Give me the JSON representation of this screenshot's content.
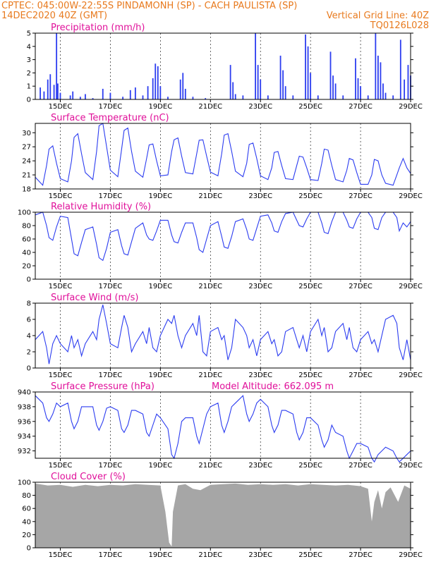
{
  "header": {
    "line1_left": "CPTEC:   045:00W-22:55S   PINDAMONH (SP) - CACH PAULISTA (SP)",
    "line2_left": "14DEC2020 40Z (GMT)",
    "line2_right": "Vertical Grid Line: 40Z",
    "line3_right": "TQ0126L028"
  },
  "colors": {
    "header": "#e87a1e",
    "title": "#e0109a",
    "series": "#2c3df0",
    "cloud": "#a6a6a6",
    "frame": "#000000"
  },
  "x_axis": {
    "range_days": [
      14,
      29
    ],
    "tick_days": [
      15,
      17,
      19,
      21,
      23,
      25,
      27,
      29
    ],
    "tick_labels": [
      "15DEC",
      "17DEC",
      "19DEC",
      "21DEC",
      "23DEC",
      "25DEC",
      "27DEC",
      "29DEC"
    ]
  },
  "chart_data": [
    {
      "type": "bar",
      "title": "Precipitation (mm/h)",
      "ylim": [
        0,
        5
      ],
      "yticks": [
        0,
        1,
        2,
        3,
        4,
        5
      ],
      "grid": "vertical dashed at 40Z",
      "x_days": [
        14.2,
        14.35,
        14.5,
        14.6,
        14.75,
        14.85,
        14.9,
        15.0,
        15.4,
        15.5,
        15.8,
        16.0,
        16.3,
        16.7,
        17.0,
        17.5,
        17.8,
        18.0,
        18.3,
        18.5,
        18.7,
        18.8,
        18.9,
        19.0,
        19.3,
        19.8,
        19.9,
        20.0,
        20.3,
        20.8,
        21.8,
        21.9,
        22.0,
        22.3,
        22.8,
        22.9,
        23.0,
        23.3,
        23.8,
        23.9,
        24.0,
        24.3,
        24.8,
        24.9,
        25.0,
        25.3,
        25.8,
        25.9,
        26.0,
        26.3,
        26.8,
        26.9,
        27.0,
        27.3,
        27.6,
        27.7,
        27.8,
        27.9,
        28.0,
        28.3,
        28.6,
        28.75,
        28.9,
        29.0
      ],
      "values": [
        0.9,
        0.6,
        1.5,
        1.9,
        1.1,
        5.0,
        1.2,
        0.5,
        0.3,
        0.6,
        0.2,
        0.4,
        0.1,
        0.8,
        0.5,
        0.2,
        0.7,
        0.9,
        0.3,
        1.0,
        1.6,
        2.7,
        2.5,
        1.0,
        0.2,
        1.5,
        2.0,
        0.8,
        0.2,
        0.1,
        2.6,
        1.3,
        0.4,
        0.3,
        5.0,
        2.6,
        1.5,
        0.3,
        3.3,
        2.2,
        1.0,
        0.3,
        4.9,
        4.0,
        2.0,
        0.3,
        3.6,
        1.8,
        1.2,
        0.3,
        3.1,
        1.6,
        1.0,
        0.3,
        5.0,
        3.3,
        2.8,
        1.2,
        0.5,
        0.3,
        4.5,
        1.5,
        2.6,
        1.8
      ]
    },
    {
      "type": "line",
      "title": "Surface Temperature (nC)",
      "ylim": [
        18,
        32
      ],
      "yticks": [
        18,
        21,
        24,
        27,
        30
      ],
      "x_days": [
        14.0,
        14.3,
        14.45,
        14.55,
        14.7,
        14.85,
        15.0,
        15.3,
        15.45,
        15.55,
        15.7,
        15.85,
        16.0,
        16.3,
        16.45,
        16.55,
        16.7,
        16.85,
        17.0,
        17.3,
        17.45,
        17.55,
        17.7,
        17.85,
        18.0,
        18.3,
        18.45,
        18.55,
        18.7,
        18.85,
        19.0,
        19.3,
        19.45,
        19.55,
        19.7,
        19.85,
        20.0,
        20.3,
        20.45,
        20.55,
        20.7,
        20.85,
        21.0,
        21.3,
        21.45,
        21.55,
        21.7,
        21.85,
        22.0,
        22.3,
        22.45,
        22.55,
        22.7,
        22.85,
        23.0,
        23.3,
        23.45,
        23.55,
        23.7,
        23.85,
        24.0,
        24.3,
        24.45,
        24.55,
        24.7,
        24.85,
        25.0,
        25.3,
        25.45,
        25.55,
        25.7,
        25.85,
        26.0,
        26.3,
        26.45,
        26.55,
        26.7,
        26.85,
        27.0,
        27.3,
        27.45,
        27.55,
        27.7,
        27.85,
        28.0,
        28.3,
        28.45,
        28.55,
        28.7,
        28.85,
        29.0
      ],
      "values": [
        20.5,
        18.8,
        23.0,
        26.5,
        27.2,
        23.5,
        20.2,
        19.5,
        24.0,
        29.0,
        29.8,
        25.5,
        21.5,
        20.0,
        26.0,
        31.5,
        32.0,
        27.0,
        22.0,
        20.6,
        26.5,
        30.5,
        31.0,
        26.0,
        21.8,
        20.5,
        24.5,
        27.4,
        27.6,
        24.0,
        20.8,
        21.0,
        26.0,
        28.5,
        28.9,
        25.0,
        21.5,
        21.2,
        25.5,
        28.4,
        28.5,
        25.0,
        21.6,
        20.8,
        25.5,
        29.5,
        29.8,
        26.0,
        21.8,
        20.6,
        23.5,
        27.5,
        27.8,
        24.5,
        20.8,
        20.0,
        22.5,
        25.8,
        26.0,
        23.0,
        20.2,
        20.0,
        23.0,
        25.0,
        24.8,
        22.5,
        20.0,
        19.8,
        23.5,
        26.5,
        26.3,
        23.0,
        20.0,
        19.5,
        22.0,
        24.5,
        24.2,
        21.5,
        19.0,
        19.0,
        21.0,
        24.3,
        24.0,
        21.0,
        19.2,
        18.8,
        21.0,
        22.5,
        24.5,
        22.5,
        21.3
      ]
    },
    {
      "type": "line",
      "title": "Relative Humidity (%)",
      "ylim": [
        0,
        100
      ],
      "yticks": [
        0,
        20,
        40,
        60,
        80,
        100
      ],
      "x_days": [
        14.0,
        14.3,
        14.45,
        14.55,
        14.7,
        14.85,
        15.0,
        15.3,
        15.45,
        15.55,
        15.7,
        15.85,
        16.0,
        16.3,
        16.45,
        16.55,
        16.7,
        16.85,
        17.0,
        17.3,
        17.45,
        17.55,
        17.7,
        17.85,
        18.0,
        18.3,
        18.45,
        18.55,
        18.7,
        18.85,
        19.0,
        19.3,
        19.45,
        19.55,
        19.7,
        19.85,
        20.0,
        20.3,
        20.45,
        20.55,
        20.7,
        20.85,
        21.0,
        21.3,
        21.45,
        21.55,
        21.7,
        21.85,
        22.0,
        22.3,
        22.45,
        22.55,
        22.7,
        22.85,
        23.0,
        23.3,
        23.45,
        23.55,
        23.7,
        23.85,
        24.0,
        24.3,
        24.45,
        24.55,
        24.7,
        24.85,
        25.0,
        25.3,
        25.45,
        25.55,
        25.7,
        25.85,
        26.0,
        26.3,
        26.45,
        26.55,
        26.7,
        26.85,
        27.0,
        27.3,
        27.45,
        27.55,
        27.7,
        27.85,
        28.0,
        28.3,
        28.45,
        28.55,
        28.7,
        28.85,
        29.0
      ],
      "values": [
        96,
        100,
        80,
        62,
        58,
        78,
        94,
        92,
        60,
        38,
        35,
        55,
        74,
        78,
        52,
        32,
        28,
        46,
        70,
        74,
        50,
        38,
        36,
        56,
        76,
        84,
        66,
        60,
        58,
        72,
        88,
        88,
        66,
        56,
        54,
        70,
        84,
        84,
        62,
        44,
        40,
        60,
        80,
        86,
        64,
        48,
        46,
        64,
        86,
        90,
        74,
        60,
        58,
        76,
        94,
        96,
        84,
        72,
        70,
        86,
        98,
        100,
        88,
        80,
        78,
        90,
        100,
        100,
        84,
        70,
        68,
        86,
        100,
        100,
        88,
        78,
        76,
        90,
        100,
        100,
        92,
        76,
        74,
        92,
        100,
        100,
        92,
        72,
        84,
        78,
        86
      ]
    },
    {
      "type": "line",
      "title": "Surface Wind (m/s)",
      "ylim": [
        0,
        8
      ],
      "yticks": [
        0,
        2,
        4,
        6,
        8
      ],
      "x_days": [
        14.0,
        14.3,
        14.45,
        14.55,
        14.7,
        14.85,
        15.0,
        15.3,
        15.45,
        15.55,
        15.7,
        15.85,
        16.0,
        16.3,
        16.45,
        16.55,
        16.7,
        16.85,
        17.0,
        17.3,
        17.45,
        17.55,
        17.7,
        17.85,
        18.0,
        18.3,
        18.45,
        18.55,
        18.7,
        18.85,
        19.0,
        19.3,
        19.45,
        19.55,
        19.7,
        19.85,
        20.0,
        20.3,
        20.45,
        20.55,
        20.7,
        20.85,
        21.0,
        21.3,
        21.45,
        21.55,
        21.7,
        21.85,
        22.0,
        22.3,
        22.45,
        22.55,
        22.7,
        22.85,
        23.0,
        23.3,
        23.45,
        23.55,
        23.7,
        23.85,
        24.0,
        24.3,
        24.45,
        24.55,
        24.7,
        24.85,
        25.0,
        25.3,
        25.45,
        25.55,
        25.7,
        25.85,
        26.0,
        26.3,
        26.45,
        26.55,
        26.7,
        26.85,
        27.0,
        27.3,
        27.45,
        27.55,
        27.7,
        27.85,
        28.0,
        28.3,
        28.45,
        28.55,
        28.7,
        28.85,
        29.0
      ],
      "values": [
        3.5,
        4.5,
        2.5,
        0.5,
        3.0,
        4.0,
        3.0,
        2.0,
        4.0,
        2.5,
        3.5,
        1.5,
        3.0,
        4.5,
        3.5,
        6.0,
        7.8,
        5.5,
        3.0,
        2.5,
        5.0,
        6.5,
        5.0,
        2.0,
        3.0,
        4.5,
        3.0,
        5.0,
        2.5,
        2.0,
        4.0,
        6.0,
        5.5,
        6.5,
        4.0,
        2.5,
        4.0,
        5.5,
        4.0,
        6.5,
        2.0,
        1.5,
        4.5,
        5.0,
        3.5,
        4.0,
        1.0,
        2.5,
        6.0,
        5.0,
        4.0,
        2.5,
        3.5,
        1.5,
        3.5,
        4.5,
        3.0,
        3.5,
        1.5,
        2.0,
        4.5,
        5.0,
        3.5,
        2.5,
        4.0,
        2.0,
        4.5,
        6.0,
        4.0,
        5.0,
        2.0,
        2.5,
        4.5,
        5.5,
        3.5,
        5.0,
        2.5,
        2.0,
        3.5,
        4.5,
        3.0,
        3.5,
        2.0,
        4.0,
        6.0,
        6.5,
        5.5,
        2.5,
        1.0,
        3.5,
        1.0
      ]
    },
    {
      "type": "line",
      "title": "Surface Pressure (hPa)",
      "annotation": "Model Altitude: 662.095 m",
      "ylim": [
        931,
        940
      ],
      "yticks": [
        932,
        934,
        936,
        938,
        940
      ],
      "x_days": [
        14.0,
        14.3,
        14.45,
        14.55,
        14.7,
        14.85,
        15.0,
        15.3,
        15.45,
        15.55,
        15.7,
        15.85,
        16.0,
        16.3,
        16.45,
        16.55,
        16.7,
        16.85,
        17.0,
        17.3,
        17.45,
        17.55,
        17.7,
        17.85,
        18.0,
        18.3,
        18.45,
        18.55,
        18.7,
        18.85,
        19.0,
        19.3,
        19.45,
        19.55,
        19.7,
        19.85,
        20.0,
        20.3,
        20.45,
        20.55,
        20.7,
        20.85,
        21.0,
        21.3,
        21.45,
        21.55,
        21.7,
        21.85,
        22.0,
        22.3,
        22.45,
        22.55,
        22.7,
        22.85,
        23.0,
        23.3,
        23.45,
        23.55,
        23.7,
        23.85,
        24.0,
        24.3,
        24.45,
        24.55,
        24.7,
        24.85,
        25.0,
        25.3,
        25.45,
        25.55,
        25.7,
        25.85,
        26.0,
        26.3,
        26.45,
        26.55,
        26.7,
        26.85,
        27.0,
        27.3,
        27.45,
        27.55,
        27.7,
        27.85,
        28.0,
        28.3,
        28.45,
        28.55,
        28.7,
        28.85,
        29.0
      ],
      "values": [
        939.5,
        938.5,
        936.5,
        936.0,
        937.0,
        938.5,
        938.0,
        938.5,
        936.0,
        935.0,
        936.0,
        938.0,
        938.0,
        938.0,
        935.5,
        934.8,
        936.0,
        937.8,
        938.0,
        937.5,
        935.0,
        934.5,
        935.5,
        937.5,
        937.5,
        937.0,
        934.5,
        934.0,
        935.5,
        937.0,
        936.5,
        935.0,
        931.5,
        931.0,
        933.0,
        936.0,
        936.5,
        936.5,
        934.0,
        933.0,
        935.0,
        937.0,
        938.0,
        938.5,
        935.5,
        934.5,
        936.0,
        938.0,
        938.5,
        939.5,
        937.0,
        936.0,
        937.0,
        938.5,
        939.0,
        938.0,
        935.5,
        934.5,
        935.5,
        937.5,
        937.5,
        937.0,
        934.5,
        933.5,
        934.5,
        936.5,
        936.5,
        935.5,
        933.5,
        932.5,
        933.5,
        935.5,
        934.5,
        934.0,
        932.0,
        931.0,
        932.0,
        933.0,
        933.0,
        932.5,
        931.0,
        930.5,
        931.5,
        932.0,
        932.5,
        932.0,
        931.0,
        930.5,
        931.0,
        931.5,
        932.0
      ]
    },
    {
      "type": "area",
      "title": "Cloud Cover (%)",
      "ylim": [
        0,
        100
      ],
      "yticks": [
        0,
        20,
        40,
        60,
        80,
        100
      ],
      "x_days": [
        14.0,
        14.5,
        15.0,
        15.5,
        16.0,
        16.5,
        17.0,
        17.5,
        18.0,
        18.5,
        19.0,
        19.2,
        19.35,
        19.45,
        19.5,
        19.7,
        20.0,
        20.3,
        20.6,
        21.0,
        21.5,
        22.0,
        22.5,
        23.0,
        23.5,
        24.0,
        24.5,
        25.0,
        25.5,
        26.0,
        26.5,
        27.0,
        27.3,
        27.45,
        27.55,
        27.7,
        27.85,
        28.0,
        28.2,
        28.5,
        28.75,
        29.0
      ],
      "values": [
        98,
        95,
        96,
        93,
        96,
        94,
        96,
        95,
        97,
        96,
        95,
        55,
        8,
        2,
        55,
        95,
        97,
        90,
        88,
        96,
        97,
        98,
        96,
        97,
        96,
        97,
        95,
        97,
        96,
        95,
        96,
        94,
        90,
        40,
        70,
        88,
        60,
        85,
        92,
        70,
        95,
        90
      ]
    }
  ]
}
